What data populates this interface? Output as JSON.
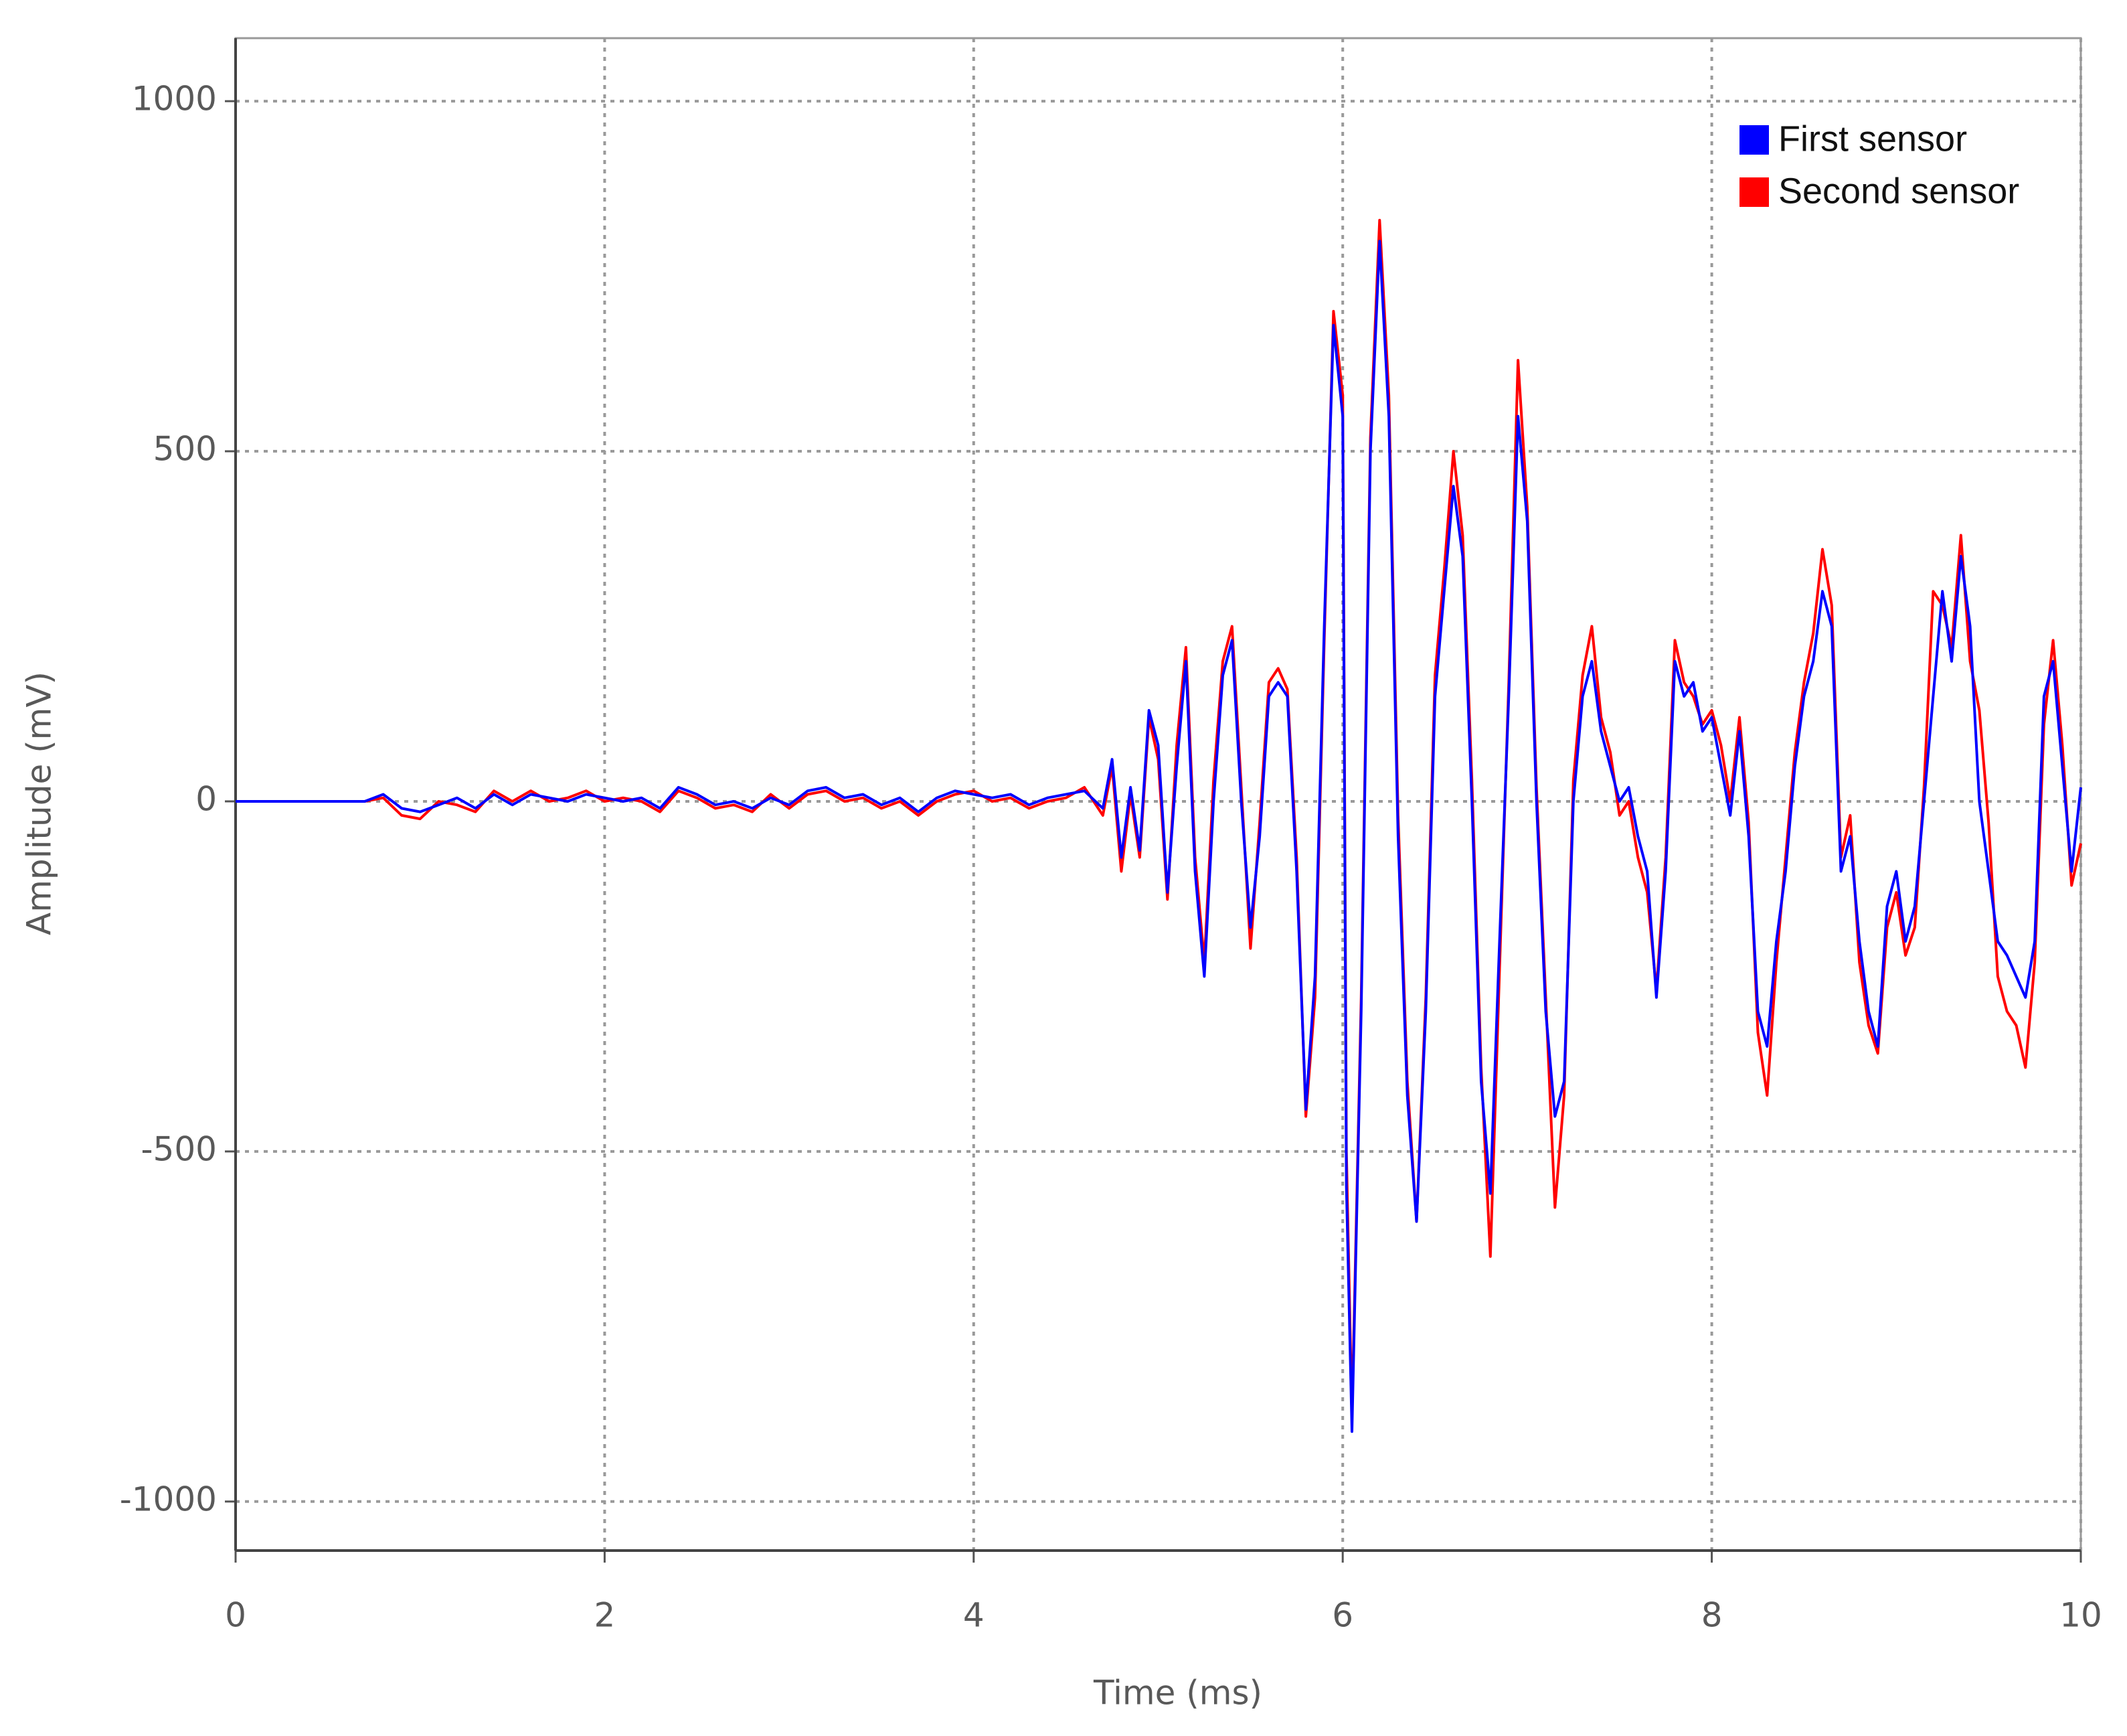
{
  "chart_data": {
    "type": "line",
    "x_label": "Time (ms)",
    "y_label": "Amplitude (mV)",
    "xlim": [
      0,
      10
    ],
    "xticks": [
      0,
      2,
      4,
      6,
      8,
      10
    ],
    "ylim": [
      -1070,
      1090
    ],
    "yticks": [
      -1000,
      -500,
      0,
      500,
      1000
    ],
    "grid": true,
    "legend": "upper right",
    "x": [
      0,
      0.7,
      0.8,
      0.9,
      1.0,
      1.1,
      1.2,
      1.3,
      1.4,
      1.5,
      1.6,
      1.7,
      1.8,
      1.9,
      2.0,
      2.1,
      2.2,
      2.3,
      2.4,
      2.5,
      2.6,
      2.7,
      2.8,
      2.9,
      3.0,
      3.1,
      3.2,
      3.3,
      3.4,
      3.5,
      3.6,
      3.7,
      3.8,
      3.9,
      4.0,
      4.1,
      4.2,
      4.3,
      4.4,
      4.5,
      4.6,
      4.7,
      4.75,
      4.8,
      4.85,
      4.9,
      4.95,
      5.0,
      5.05,
      5.1,
      5.15,
      5.2,
      5.25,
      5.3,
      5.35,
      5.4,
      5.45,
      5.5,
      5.55,
      5.6,
      5.65,
      5.7,
      5.75,
      5.8,
      5.85,
      5.9,
      5.95,
      6.0,
      6.02,
      6.05,
      6.1,
      6.15,
      6.2,
      6.25,
      6.3,
      6.35,
      6.4,
      6.45,
      6.5,
      6.55,
      6.6,
      6.65,
      6.7,
      6.75,
      6.8,
      6.85,
      6.9,
      6.95,
      7.0,
      7.05,
      7.1,
      7.15,
      7.2,
      7.25,
      7.3,
      7.35,
      7.4,
      7.45,
      7.5,
      7.55,
      7.6,
      7.65,
      7.7,
      7.75,
      7.8,
      7.85,
      7.9,
      7.95,
      8.0,
      8.05,
      8.1,
      8.15,
      8.2,
      8.25,
      8.3,
      8.35,
      8.4,
      8.45,
      8.5,
      8.55,
      8.6,
      8.65,
      8.7,
      8.75,
      8.8,
      8.85,
      8.9,
      8.95,
      9.0,
      9.05,
      9.1,
      9.15,
      9.2,
      9.25,
      9.3,
      9.35,
      9.4,
      9.45,
      9.5,
      9.55,
      9.6,
      9.65,
      9.7,
      9.75,
      9.8,
      9.85,
      9.9,
      9.95,
      10.0
    ],
    "series": [
      {
        "name": "Second sensor",
        "color": "#ff0000",
        "values": [
          0,
          0,
          5,
          -20,
          -25,
          0,
          -5,
          -15,
          15,
          0,
          15,
          0,
          5,
          15,
          0,
          5,
          0,
          -15,
          15,
          5,
          -10,
          -5,
          -15,
          10,
          -10,
          10,
          15,
          0,
          5,
          -10,
          0,
          -20,
          0,
          10,
          15,
          0,
          5,
          -10,
          0,
          5,
          20,
          -20,
          50,
          -100,
          10,
          -80,
          120,
          60,
          -140,
          80,
          220,
          -80,
          -230,
          30,
          200,
          250,
          20,
          -210,
          -30,
          170,
          190,
          160,
          -80,
          -450,
          -280,
          230,
          700,
          580,
          -500,
          -880,
          -280,
          520,
          830,
          580,
          -20,
          -400,
          -600,
          -280,
          180,
          330,
          500,
          380,
          30,
          -380,
          -650,
          -240,
          170,
          630,
          420,
          20,
          -280,
          -580,
          -420,
          30,
          180,
          250,
          120,
          70,
          -20,
          0,
          -80,
          -130,
          -270,
          -80,
          230,
          170,
          150,
          110,
          130,
          80,
          0,
          120,
          -30,
          -330,
          -420,
          -230,
          -80,
          70,
          170,
          240,
          360,
          280,
          -80,
          -20,
          -230,
          -320,
          -360,
          -180,
          -130,
          -220,
          -180,
          20,
          300,
          280,
          220,
          380,
          200,
          130,
          -30,
          -250,
          -300,
          -320,
          -380,
          -230,
          110,
          230,
          80,
          -120,
          -60
        ]
      },
      {
        "name": "First sensor",
        "color": "#0000ff",
        "values": [
          0,
          0,
          10,
          -10,
          -15,
          -5,
          5,
          -10,
          10,
          -5,
          10,
          5,
          0,
          10,
          5,
          0,
          5,
          -10,
          20,
          10,
          -5,
          0,
          -10,
          5,
          -5,
          15,
          20,
          5,
          10,
          -5,
          5,
          -15,
          5,
          15,
          10,
          5,
          10,
          -5,
          5,
          10,
          15,
          -10,
          60,
          -80,
          20,
          -70,
          130,
          80,
          -130,
          50,
          200,
          -100,
          -250,
          0,
          180,
          230,
          0,
          -180,
          -50,
          150,
          170,
          150,
          -100,
          -440,
          -250,
          250,
          680,
          550,
          -550,
          -900,
          -300,
          500,
          800,
          550,
          -50,
          -420,
          -600,
          -300,
          150,
          300,
          450,
          350,
          0,
          -400,
          -560,
          -200,
          150,
          550,
          400,
          0,
          -300,
          -450,
          -400,
          0,
          150,
          200,
          100,
          50,
          0,
          20,
          -50,
          -100,
          -280,
          -100,
          200,
          150,
          170,
          100,
          120,
          50,
          -20,
          100,
          -50,
          -300,
          -350,
          -200,
          -100,
          50,
          150,
          200,
          300,
          250,
          -100,
          -50,
          -200,
          -300,
          -350,
          -150,
          -100,
          -200,
          -150,
          0,
          150,
          300,
          200,
          350,
          250,
          0,
          -100,
          -200,
          -220,
          -250,
          -280,
          -200,
          150,
          200,
          50,
          -100,
          20
        ]
      }
    ]
  }
}
